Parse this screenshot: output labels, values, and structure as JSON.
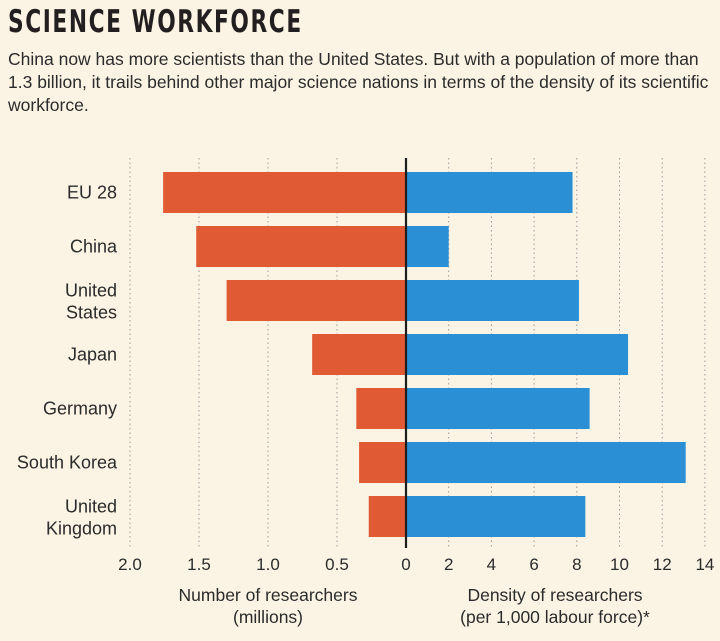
{
  "chart_data": {
    "type": "bar",
    "orientation": "horizontal",
    "layout": "diverging-butterfly",
    "title": "SCIENCE WORKFORCE",
    "subtitle": "China now has more scientists than the United States. But with a population of more than 1.3 billion, it trails behind other major science nations in terms of the density of its scientific workforce.",
    "categories": [
      [
        "EU 28"
      ],
      [
        "China"
      ],
      [
        "United",
        "States"
      ],
      [
        "Japan"
      ],
      [
        "Germany"
      ],
      [
        "South Korea"
      ],
      [
        "United",
        "Kingdom"
      ]
    ],
    "series": [
      {
        "name": "Number of researchers (millions)",
        "side": "left",
        "color": "#e05a33",
        "values": [
          1.76,
          1.52,
          1.3,
          0.68,
          0.36,
          0.34,
          0.27
        ],
        "axis_label": [
          "Number of researchers",
          "(millions)"
        ],
        "xlim": [
          0,
          2.0
        ],
        "ticks": [
          "2.0",
          "1.5",
          "1.0",
          "0.5"
        ],
        "tick_values": [
          2.0,
          1.5,
          1.0,
          0.5
        ]
      },
      {
        "name": "Density of researchers (per 1,000 labour force)*",
        "side": "right",
        "color": "#2a8fd4",
        "values": [
          7.8,
          2.0,
          8.1,
          10.4,
          8.6,
          13.1,
          8.4
        ],
        "axis_label": [
          "Density of researchers",
          "(per 1,000 labour force)*"
        ],
        "xlim": [
          0,
          14
        ],
        "ticks": [
          "0",
          "2",
          "4",
          "6",
          "8",
          "10",
          "12",
          "14"
        ],
        "tick_values": [
          0,
          2,
          4,
          6,
          8,
          10,
          12,
          14
        ]
      }
    ],
    "grid": true,
    "legend": "none"
  }
}
